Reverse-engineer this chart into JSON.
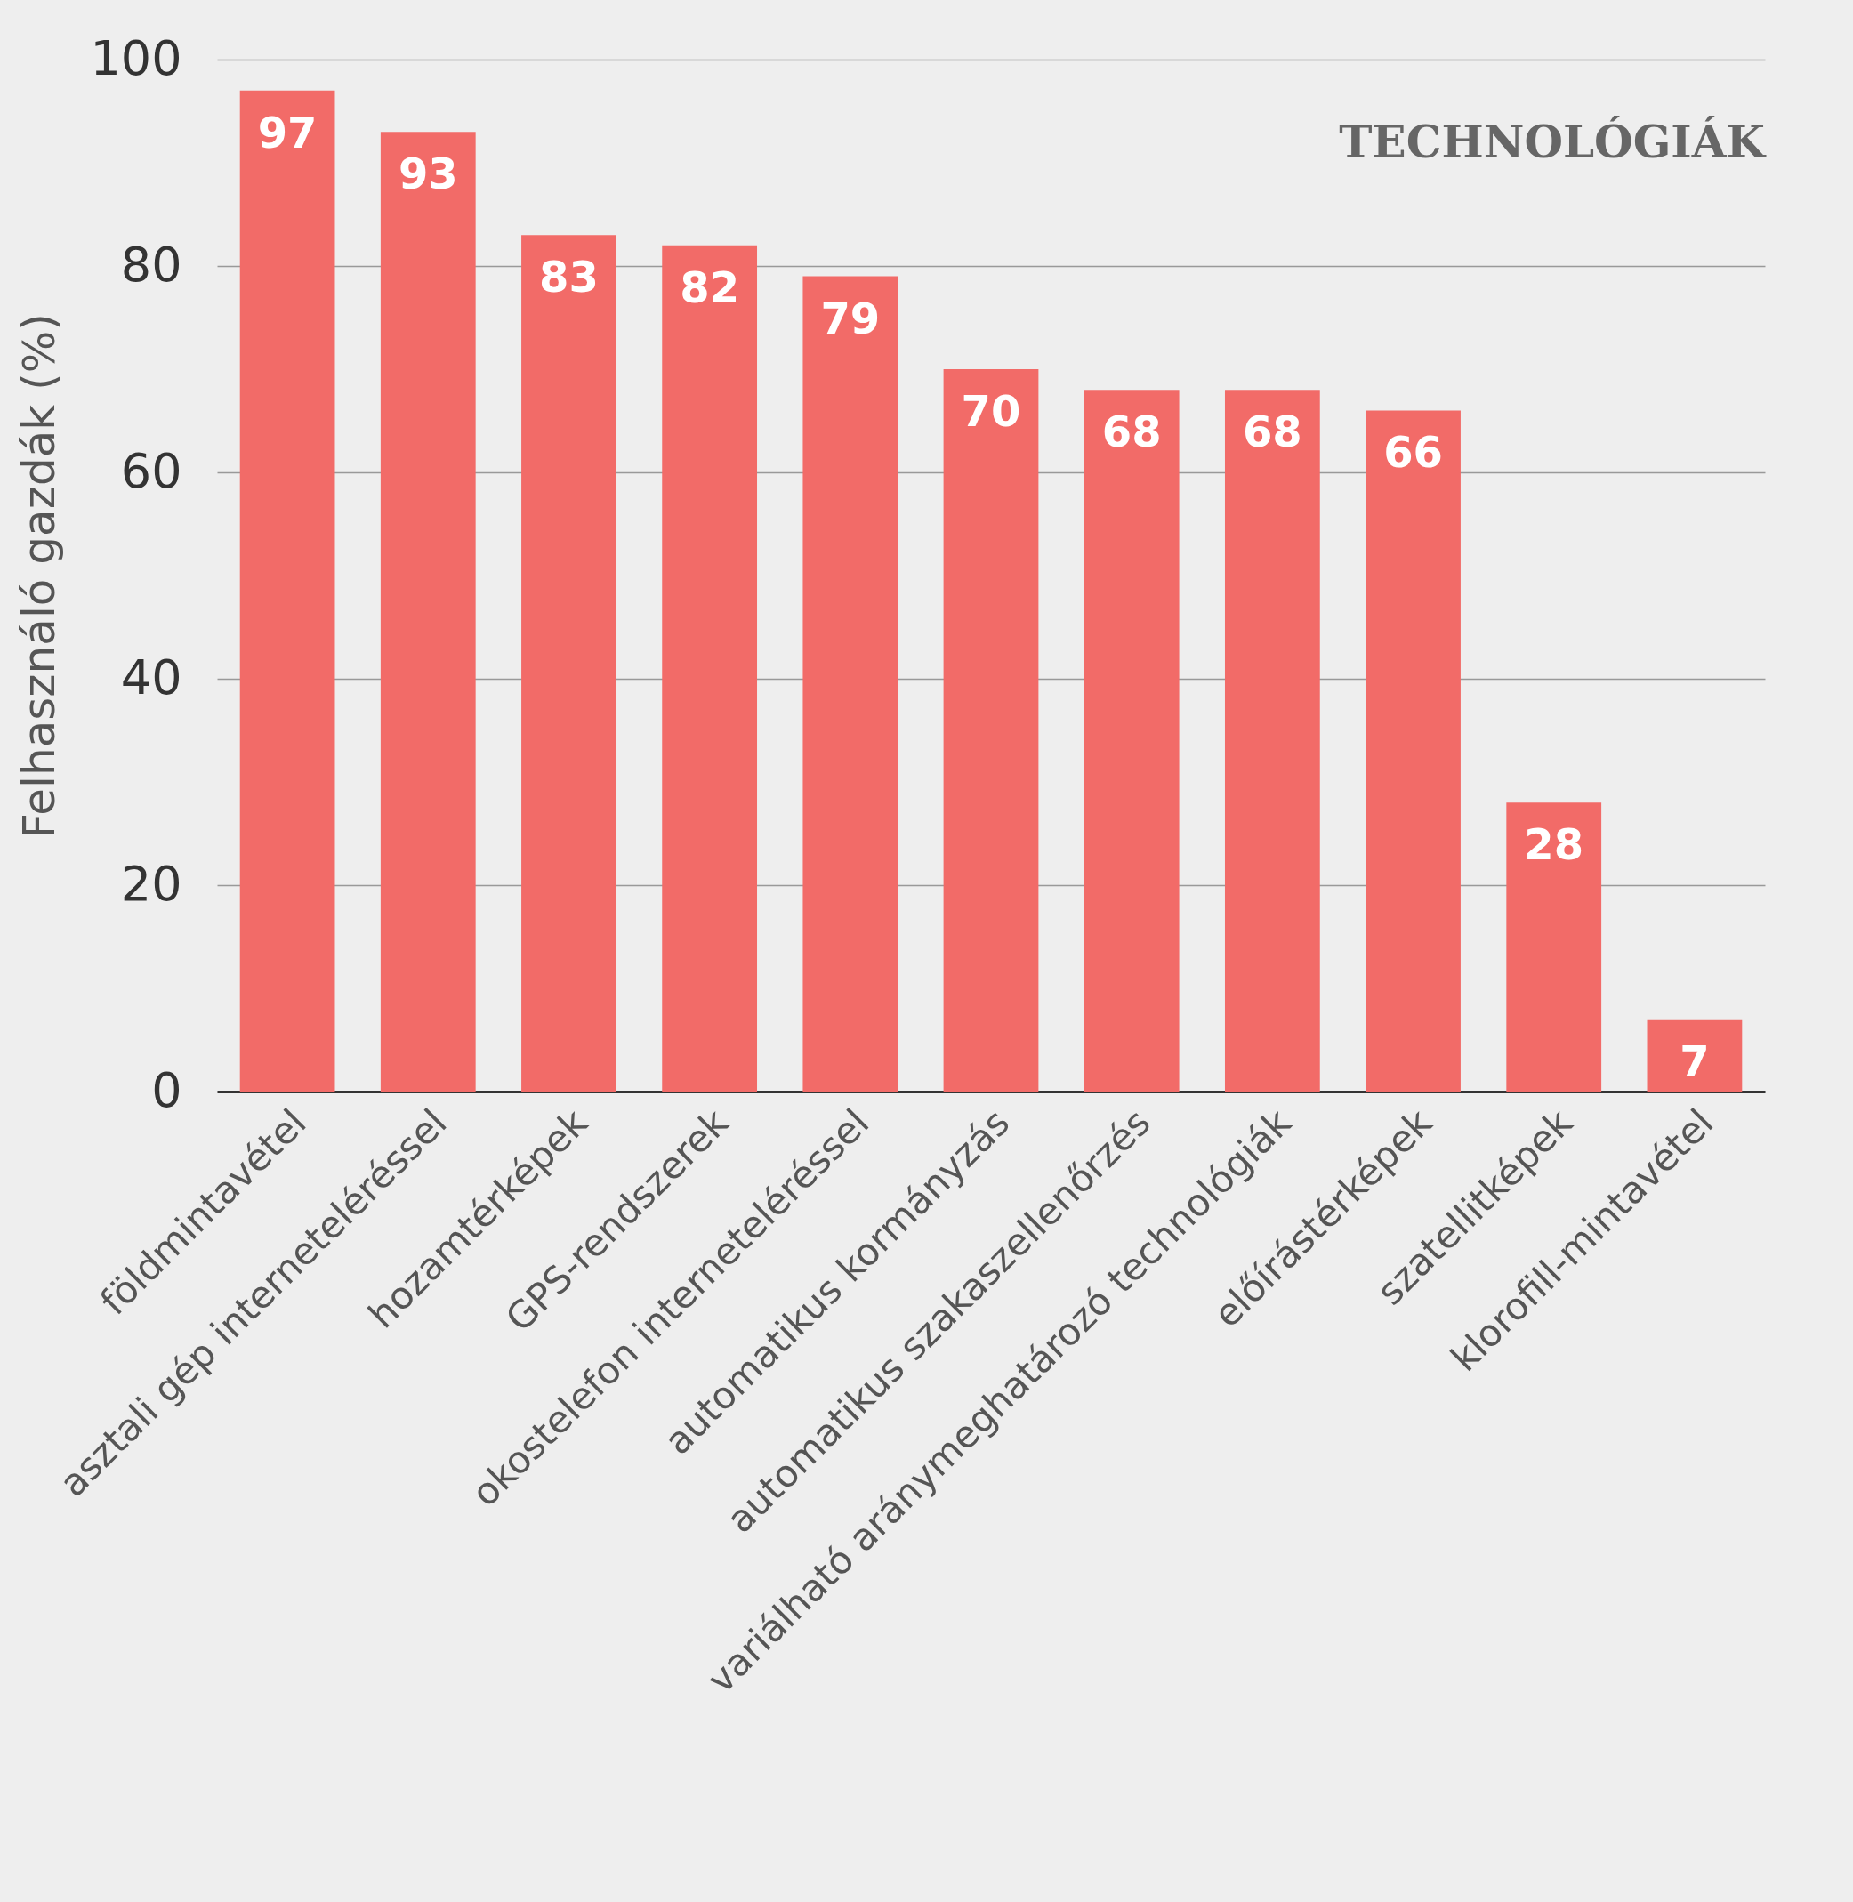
{
  "chart_data": {
    "type": "bar",
    "ylabel": "Felhasználó gazdák (%)",
    "annotations": [
      "TECHNOLÓGIÁK"
    ],
    "categories": [
      "földmintavétel",
      "asztali gép interneteléréssel",
      "hozamtérképek",
      "GPS-rendszerek",
      "okostelefon interneteléréssel",
      "automatikus kormányzás",
      "automatikus szakaszellenőrzés",
      "variálható aránymeghatározó technológiák",
      "előírástérképek",
      "szatellitképek",
      "klorofill-mintavétel"
    ],
    "values": [
      97,
      93,
      83,
      82,
      79,
      70,
      68,
      68,
      66,
      28,
      7
    ],
    "color": "#f26b68",
    "ylim": [
      0,
      100
    ],
    "yticks": [
      0,
      20,
      40,
      60,
      80,
      100
    ],
    "grid": "y",
    "data_labels": true
  }
}
